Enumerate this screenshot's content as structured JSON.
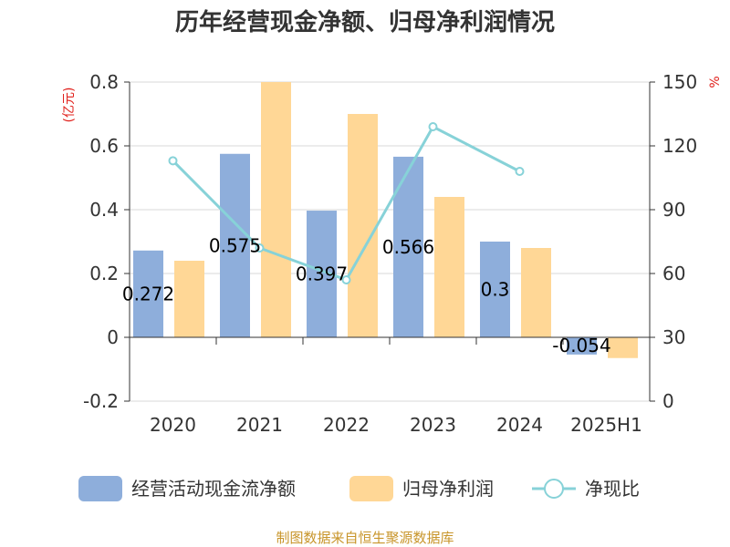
{
  "chart_data": {
    "type": "bar",
    "title": "历年经营现金净额、归母净利润情况",
    "categories": [
      "2020",
      "2021",
      "2022",
      "2023",
      "2024",
      "2025H1"
    ],
    "y_left": {
      "unit": "(亿元)",
      "ylim": [
        -0.2,
        0.8
      ],
      "ticks": [
        "0.8",
        "0.6",
        "0.4",
        "0.2",
        "0",
        "-0.2"
      ]
    },
    "y_right": {
      "unit": "%",
      "ylim": [
        0,
        150
      ],
      "ticks": [
        "150",
        "120",
        "90",
        "60",
        "30",
        "0"
      ]
    },
    "series": [
      {
        "name": "经营活动现金流净额",
        "type": "bar",
        "axis": "left",
        "color": "#8eaedb",
        "values": [
          0.272,
          0.575,
          0.397,
          0.566,
          0.3,
          -0.054
        ],
        "labels": [
          "0.272",
          "0.575",
          "0.397",
          "0.566",
          "0.3",
          "-0.054"
        ]
      },
      {
        "name": "归母净利润",
        "type": "bar",
        "axis": "left",
        "color": "#ffd796",
        "values": [
          0.24,
          0.8,
          0.7,
          0.44,
          0.28,
          -0.065
        ]
      },
      {
        "name": "净现比",
        "type": "line",
        "axis": "right",
        "color": "#87d2d8",
        "values": [
          113,
          72,
          57,
          129,
          108,
          null
        ]
      }
    ],
    "grid": true,
    "legend_position": "bottom"
  },
  "source_text": "制图数据来自恒生聚源数据库"
}
